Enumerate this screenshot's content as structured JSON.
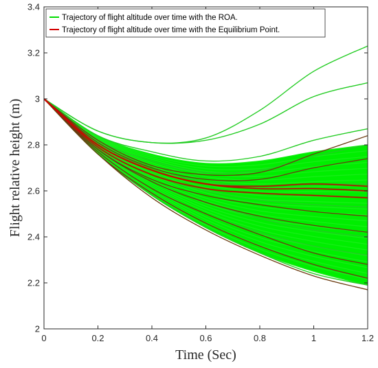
{
  "chart_data": {
    "type": "line",
    "title": "",
    "xlabel": "Time (Sec)",
    "ylabel": "Flight relative height (m)",
    "xlim": [
      0,
      1.2
    ],
    "ylim": [
      2,
      3.4
    ],
    "xticks": [
      0,
      0.2,
      0.4,
      0.6,
      0.8,
      1,
      1.2
    ],
    "xtick_labels": [
      "0",
      "0.2",
      "0.4",
      "0.6",
      "0.8",
      "1",
      "1.2"
    ],
    "yticks": [
      2,
      2.2,
      2.4,
      2.6,
      2.8,
      3,
      3.2,
      3.4
    ],
    "ytick_labels": [
      "2",
      "2.2",
      "2.4",
      "2.6",
      "2.8",
      "3",
      "3.2",
      "3.4"
    ],
    "grid": false,
    "legend_position": "top-left",
    "x": [
      0,
      0.2,
      0.4,
      0.6,
      0.8,
      1.0,
      1.2
    ],
    "series": [
      {
        "name": "Trajectory of flight altitude over time with the ROA.",
        "color": "#00ee00",
        "lines": [
          [
            3.0,
            2.86,
            2.81,
            2.83,
            2.95,
            3.12,
            3.23
          ],
          [
            3.0,
            2.86,
            2.81,
            2.82,
            2.89,
            3.01,
            3.07
          ],
          [
            3.0,
            2.84,
            2.77,
            2.73,
            2.75,
            2.82,
            2.87
          ],
          [
            3.0,
            2.82,
            2.73,
            2.68,
            2.69,
            2.75,
            2.8
          ],
          [
            3.0,
            2.8,
            2.7,
            2.64,
            2.62,
            2.63,
            2.63
          ],
          [
            3.0,
            2.79,
            2.67,
            2.6,
            2.56,
            2.54,
            2.53
          ],
          [
            3.0,
            2.78,
            2.64,
            2.55,
            2.48,
            2.43,
            2.4
          ],
          [
            3.0,
            2.77,
            2.61,
            2.5,
            2.42,
            2.36,
            2.32
          ],
          [
            3.0,
            2.76,
            2.59,
            2.46,
            2.36,
            2.28,
            2.22
          ],
          [
            3.0,
            2.76,
            2.58,
            2.44,
            2.33,
            2.24,
            2.19
          ]
        ],
        "band_upper": [
          3.0,
          2.84,
          2.76,
          2.72,
          2.73,
          2.77,
          2.8
        ],
        "band_lower": [
          3.0,
          2.76,
          2.58,
          2.44,
          2.33,
          2.25,
          2.19
        ]
      },
      {
        "name": "Trajectory of flight altitude over time with the Equilibrium Point.",
        "color": "#d40000",
        "lines": [
          [
            3.0,
            2.82,
            2.71,
            2.67,
            2.68,
            2.76,
            2.84
          ],
          [
            3.0,
            2.81,
            2.7,
            2.65,
            2.65,
            2.7,
            2.74
          ],
          [
            3.0,
            2.8,
            2.69,
            2.63,
            2.62,
            2.63,
            2.62
          ],
          [
            3.0,
            2.8,
            2.69,
            2.63,
            2.61,
            2.61,
            2.6
          ],
          [
            3.0,
            2.79,
            2.67,
            2.61,
            2.59,
            2.58,
            2.57
          ],
          [
            3.0,
            2.78,
            2.65,
            2.58,
            2.54,
            2.51,
            2.49
          ],
          [
            3.0,
            2.78,
            2.64,
            2.55,
            2.49,
            2.45,
            2.42
          ],
          [
            3.0,
            2.77,
            2.61,
            2.5,
            2.41,
            2.33,
            2.28
          ],
          [
            3.0,
            2.76,
            2.59,
            2.46,
            2.36,
            2.28,
            2.22
          ],
          [
            3.0,
            2.76,
            2.57,
            2.43,
            2.32,
            2.23,
            2.17
          ]
        ]
      }
    ]
  }
}
